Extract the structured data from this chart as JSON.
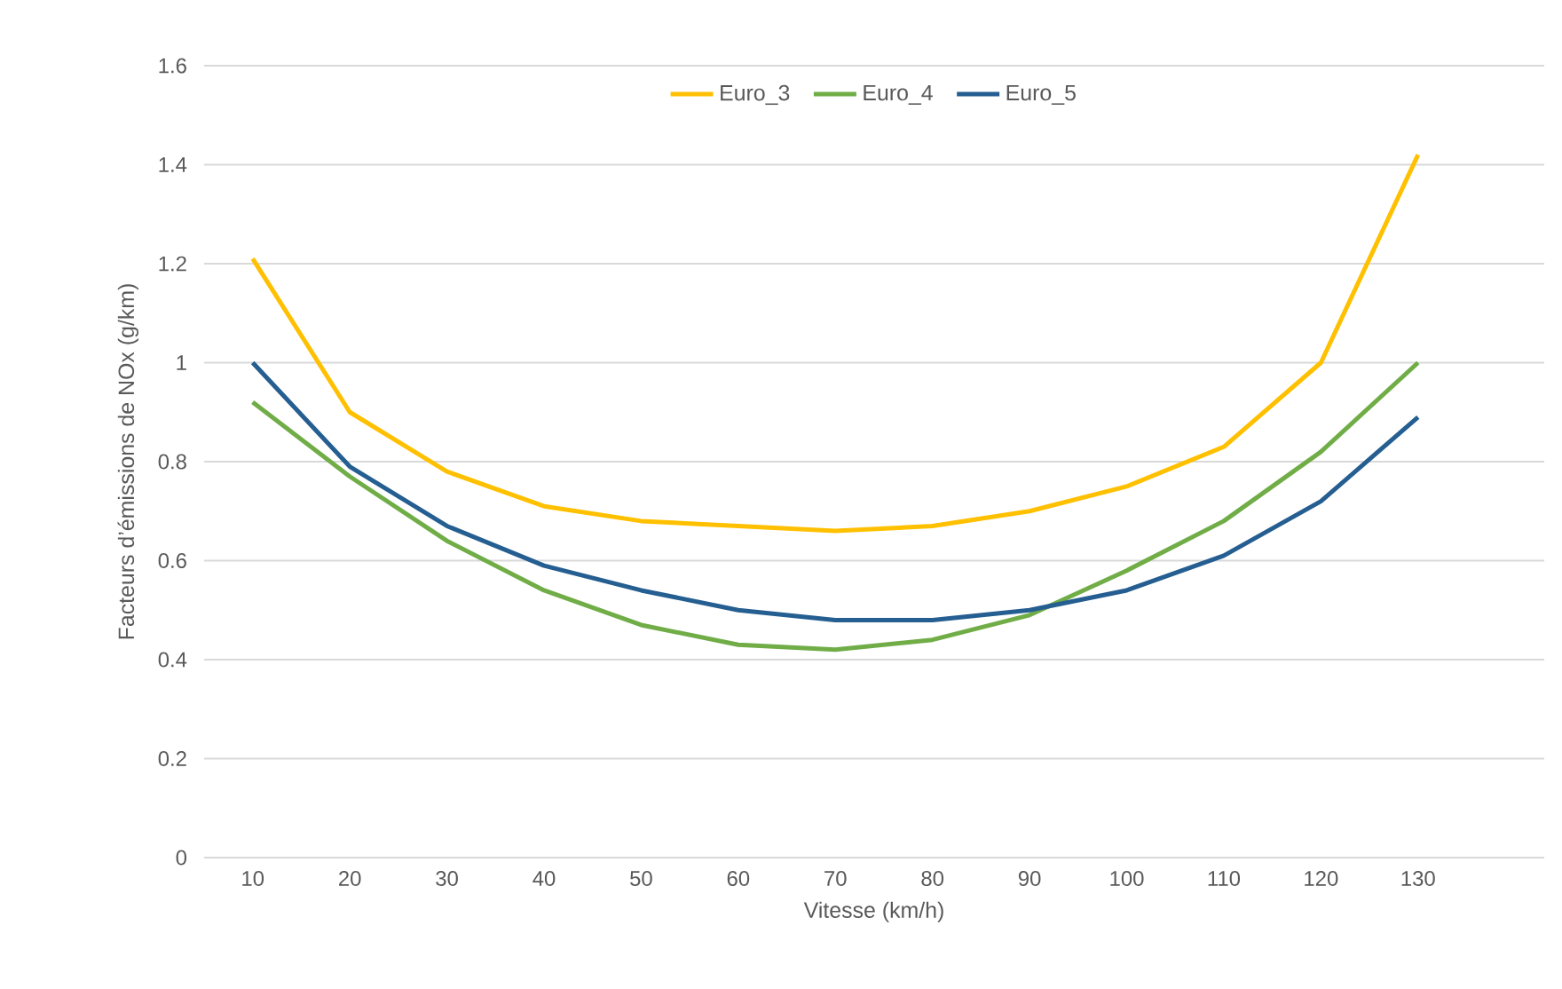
{
  "chart_data": {
    "type": "line",
    "xlabel": "Vitesse (km/h)",
    "ylabel": "Facteurs d’émissions de NOx (g/km)",
    "categories": [
      "10",
      "20",
      "30",
      "40",
      "50",
      "60",
      "70",
      "80",
      "90",
      "100",
      "110",
      "120",
      "130"
    ],
    "series": [
      {
        "name": "Euro_3",
        "color": "#ffc000",
        "values": [
          1.21,
          0.9,
          0.78,
          0.71,
          0.68,
          0.67,
          0.66,
          0.67,
          0.7,
          0.75,
          0.83,
          1.0,
          1.42
        ]
      },
      {
        "name": "Euro_4",
        "color": "#70ad47",
        "values": [
          0.92,
          0.77,
          0.64,
          0.54,
          0.47,
          0.43,
          0.42,
          0.44,
          0.49,
          0.58,
          0.68,
          0.82,
          1.0
        ]
      },
      {
        "name": "Euro_5",
        "color": "#255e91",
        "values": [
          1.0,
          0.79,
          0.67,
          0.59,
          0.54,
          0.5,
          0.48,
          0.48,
          0.5,
          0.54,
          0.61,
          0.72,
          0.89
        ]
      }
    ],
    "ylim": [
      0,
      1.6
    ],
    "yticks": [
      0,
      0.2,
      0.4,
      0.6,
      0.8,
      1,
      1.2,
      1.4,
      1.6
    ],
    "grid": "y",
    "legend": "top",
    "marker": "none",
    "line_style": "solid"
  }
}
